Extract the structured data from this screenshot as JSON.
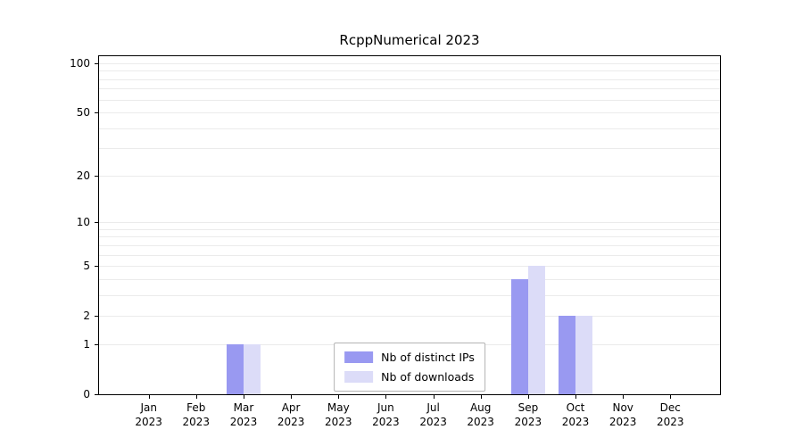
{
  "chart_data": {
    "type": "bar",
    "title": "RcppNumerical 2023",
    "categories": [
      "Jan 2023",
      "Feb 2023",
      "Mar 2023",
      "Apr 2023",
      "May 2023",
      "Jun 2023",
      "Jul 2023",
      "Aug 2023",
      "Sep 2023",
      "Oct 2023",
      "Nov 2023",
      "Dec 2023"
    ],
    "series": [
      {
        "name": "Nb of distinct IPs",
        "color": "#9999f1",
        "values": [
          0,
          0,
          1,
          0,
          0,
          0,
          0,
          0,
          4,
          2,
          0,
          0
        ]
      },
      {
        "name": "Nb of downloads",
        "color": "#dcdcf8",
        "values": [
          0,
          0,
          1,
          0,
          0,
          0,
          0,
          0,
          5,
          2,
          0,
          0
        ]
      }
    ],
    "yscale": "log1p",
    "ylim": [
      0,
      100
    ],
    "yticks": [
      0,
      1,
      2,
      5,
      10,
      20,
      50,
      100
    ],
    "grid": "horizontal-minor",
    "gridline_color": "#ebebeb",
    "legend_position": "bottom-center-inside"
  }
}
